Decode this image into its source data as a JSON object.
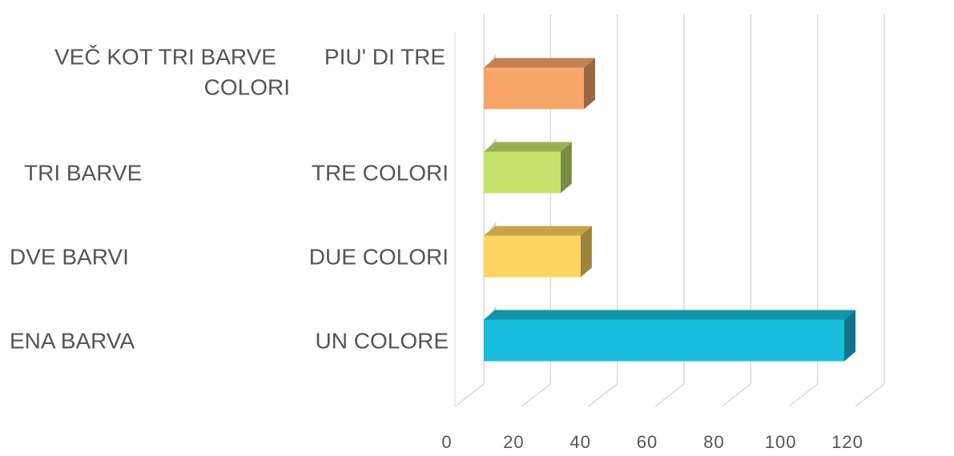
{
  "chart_data": {
    "type": "bar",
    "orientation": "horizontal",
    "style": "3d",
    "categories_slovene": [
      "ENA BARVA",
      "DVE BARVI",
      "TRI BARVE",
      "VEČ KOT TRI BARVE"
    ],
    "categories_italian": [
      "UN COLORE",
      "DUE COLORI",
      "TRE COLORI",
      "PIU' DI TRE COLORI"
    ],
    "values": [
      108,
      29,
      23,
      30
    ],
    "xlim": [
      0,
      120
    ],
    "xticks": [
      "0",
      "20",
      "40",
      "60",
      "80",
      "100",
      "120"
    ],
    "grid": true,
    "colors": [
      "#17BCDB",
      "#FCD462",
      "#C3E36C",
      "#F7A669"
    ],
    "title": "",
    "xlabel": "",
    "ylabel": ""
  }
}
